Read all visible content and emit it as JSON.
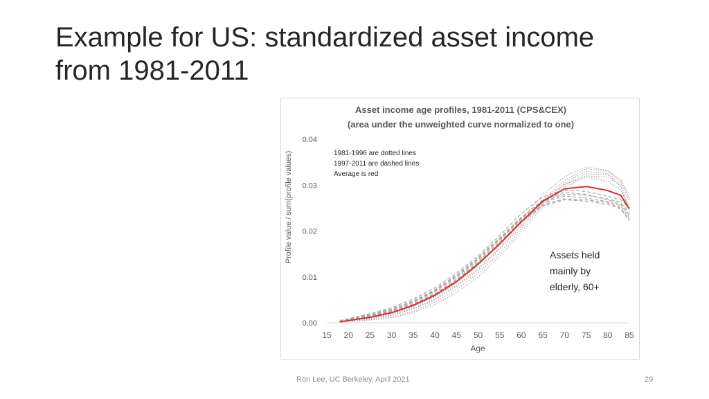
{
  "slide": {
    "title_line1": "Example for US: standardized asset income",
    "title_line2": "from 1981-2011",
    "footer_credit": "Ron Lee, UC Berkeley, April 2021",
    "page_number": "29"
  },
  "chart_data": {
    "type": "line",
    "title_line1": "Asset income age profiles, 1981-2011 (CPS&CEX)",
    "title_line2": "(area under the unweighted curve normalized to one)",
    "xlabel": "Age",
    "ylabel": "Profile value / sum(profile values)",
    "xlim": [
      15,
      85
    ],
    "ylim": [
      0,
      0.04
    ],
    "xticks": [
      "15",
      "20",
      "25",
      "30",
      "35",
      "40",
      "45",
      "50",
      "55",
      "60",
      "65",
      "70",
      "75",
      "80",
      "85"
    ],
    "yticks": [
      "0.00",
      "0.01",
      "0.02",
      "0.03",
      "0.04"
    ],
    "grid": false,
    "note_lines": [
      "1981-1996 are dotted lines",
      "1997-2011 are dashed lines",
      "Average is red"
    ],
    "annotation_lines": [
      "Assets held",
      "mainly by",
      "elderly, 60+"
    ],
    "colors": {
      "average": "#e32b2b",
      "years": "#a6a6a6",
      "text": "#595959"
    },
    "average": {
      "x": [
        18,
        20,
        25,
        30,
        35,
        40,
        45,
        50,
        55,
        60,
        65,
        70,
        75,
        78,
        80,
        83,
        85
      ],
      "y": [
        0.0002,
        0.0005,
        0.0012,
        0.0022,
        0.0038,
        0.006,
        0.009,
        0.0128,
        0.0172,
        0.022,
        0.0265,
        0.0292,
        0.0297,
        0.0292,
        0.0288,
        0.0278,
        0.0248
      ]
    },
    "dotted_series": [
      {
        "x": [
          18,
          20,
          25,
          30,
          35,
          40,
          45,
          50,
          55,
          60,
          65,
          70,
          75,
          80,
          83,
          85
        ],
        "y": [
          0.0002,
          0.0004,
          0.0009,
          0.0016,
          0.003,
          0.005,
          0.0078,
          0.0115,
          0.016,
          0.021,
          0.0262,
          0.0305,
          0.033,
          0.0325,
          0.0305,
          0.0265
        ]
      },
      {
        "x": [
          18,
          20,
          25,
          30,
          35,
          40,
          45,
          50,
          55,
          60,
          65,
          70,
          75,
          80,
          83,
          85
        ],
        "y": [
          0.0001,
          0.0003,
          0.0007,
          0.0013,
          0.0025,
          0.0045,
          0.0072,
          0.0108,
          0.0152,
          0.0205,
          0.0258,
          0.03,
          0.0325,
          0.0322,
          0.03,
          0.0255
        ]
      },
      {
        "x": [
          18,
          20,
          25,
          30,
          35,
          40,
          45,
          50,
          55,
          60,
          65,
          70,
          75,
          80,
          83,
          85
        ],
        "y": [
          0.0002,
          0.0005,
          0.0011,
          0.0019,
          0.0034,
          0.0056,
          0.0086,
          0.0125,
          0.0172,
          0.0225,
          0.028,
          0.0318,
          0.034,
          0.0332,
          0.0312,
          0.027
        ]
      },
      {
        "x": [
          18,
          20,
          25,
          30,
          35,
          40,
          45,
          50,
          55,
          60,
          65,
          70,
          75,
          80,
          83,
          85
        ],
        "y": [
          0.0001,
          0.0002,
          0.0006,
          0.0011,
          0.0022,
          0.004,
          0.0066,
          0.01,
          0.0145,
          0.0198,
          0.0252,
          0.0295,
          0.032,
          0.0318,
          0.0298,
          0.0245
        ]
      },
      {
        "x": [
          18,
          20,
          25,
          30,
          35,
          40,
          45,
          50,
          55,
          60,
          65,
          70,
          75,
          80,
          83,
          85
        ],
        "y": [
          0.0003,
          0.0006,
          0.0012,
          0.0021,
          0.0036,
          0.0058,
          0.0088,
          0.0126,
          0.017,
          0.0218,
          0.0268,
          0.031,
          0.0336,
          0.033,
          0.031,
          0.028
        ]
      },
      {
        "x": [
          18,
          20,
          25,
          30,
          35,
          40,
          45,
          50,
          55,
          60,
          65,
          70,
          75,
          80,
          83,
          85
        ],
        "y": [
          0.0002,
          0.0004,
          0.001,
          0.0017,
          0.0031,
          0.0052,
          0.0081,
          0.0118,
          0.0163,
          0.0214,
          0.0266,
          0.0302,
          0.0318,
          0.0308,
          0.029,
          0.025
        ]
      }
    ],
    "dashed_series": [
      {
        "x": [
          18,
          20,
          25,
          30,
          35,
          40,
          45,
          50,
          55,
          60,
          65,
          70,
          75,
          80,
          83,
          85
        ],
        "y": [
          0.0004,
          0.0008,
          0.0018,
          0.003,
          0.0048,
          0.0072,
          0.0104,
          0.0142,
          0.0185,
          0.023,
          0.0265,
          0.028,
          0.0278,
          0.027,
          0.0262,
          0.024
        ]
      },
      {
        "x": [
          18,
          20,
          25,
          30,
          35,
          40,
          45,
          50,
          55,
          60,
          65,
          70,
          75,
          80,
          83,
          85
        ],
        "y": [
          0.0003,
          0.0007,
          0.0016,
          0.0027,
          0.0044,
          0.0068,
          0.0099,
          0.0137,
          0.018,
          0.0226,
          0.0262,
          0.0276,
          0.0272,
          0.0264,
          0.0255,
          0.023
        ]
      },
      {
        "x": [
          18,
          20,
          25,
          30,
          35,
          40,
          45,
          50,
          55,
          60,
          65,
          70,
          75,
          80,
          83,
          85
        ],
        "y": [
          0.0005,
          0.0009,
          0.002,
          0.0033,
          0.0052,
          0.0076,
          0.0108,
          0.0146,
          0.019,
          0.0238,
          0.0275,
          0.029,
          0.0286,
          0.0276,
          0.0268,
          0.025
        ]
      },
      {
        "x": [
          18,
          20,
          25,
          30,
          35,
          40,
          45,
          50,
          55,
          60,
          65,
          70,
          75,
          80,
          83,
          85
        ],
        "y": [
          0.0003,
          0.0006,
          0.0015,
          0.0025,
          0.0041,
          0.0064,
          0.0095,
          0.0133,
          0.0176,
          0.0222,
          0.0258,
          0.027,
          0.0268,
          0.0262,
          0.025,
          0.0225
        ]
      },
      {
        "x": [
          18,
          20,
          25,
          30,
          35,
          40,
          45,
          50,
          55,
          60,
          65,
          70,
          75,
          80,
          83,
          85
        ],
        "y": [
          0.0004,
          0.0007,
          0.0017,
          0.0029,
          0.0046,
          0.007,
          0.0102,
          0.014,
          0.0183,
          0.0228,
          0.0268,
          0.0284,
          0.028,
          0.0268,
          0.0258,
          0.0235
        ]
      },
      {
        "x": [
          18,
          20,
          25,
          30,
          35,
          40,
          45,
          50,
          55,
          60,
          65,
          70,
          75,
          80,
          83,
          85
        ],
        "y": [
          0.0002,
          0.0006,
          0.0014,
          0.0024,
          0.004,
          0.0062,
          0.0092,
          0.013,
          0.0173,
          0.022,
          0.0255,
          0.0268,
          0.0265,
          0.0258,
          0.0248,
          0.0222
        ]
      }
    ]
  }
}
